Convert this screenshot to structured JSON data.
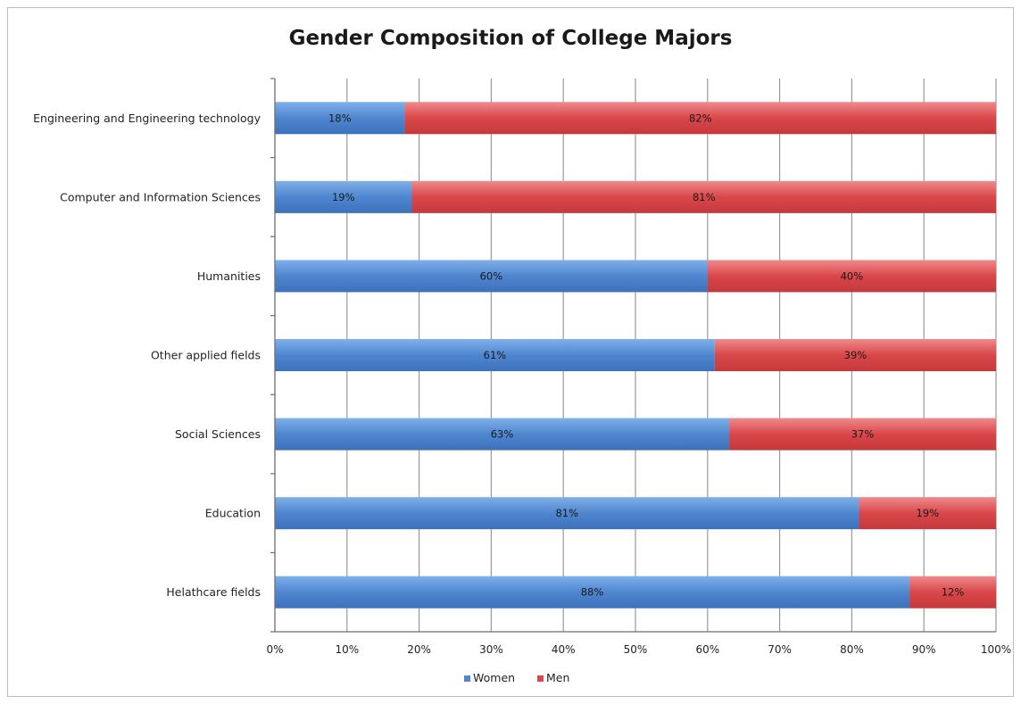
{
  "chart_data": {
    "type": "bar",
    "orientation": "horizontal",
    "stacked": true,
    "title": "Gender Composition of College Majors",
    "categories": [
      "Engineering and Engineering technology",
      "Computer and Information Sciences",
      "Humanities",
      "Other applied fields",
      "Social Sciences",
      "Education",
      "Helathcare fields"
    ],
    "series": [
      {
        "name": "Women",
        "values": [
          18,
          19,
          60,
          61,
          63,
          81,
          88
        ],
        "color": "#4f86cf"
      },
      {
        "name": "Men",
        "values": [
          82,
          81,
          40,
          39,
          37,
          19,
          12
        ],
        "color": "#d9474a"
      }
    ],
    "xlim": [
      0,
      100
    ],
    "x_ticks": [
      "0%",
      "10%",
      "20%",
      "30%",
      "40%",
      "50%",
      "60%",
      "70%",
      "80%",
      "90%",
      "100%"
    ],
    "value_suffix": "%",
    "grid": true,
    "legend_position": "bottom"
  }
}
